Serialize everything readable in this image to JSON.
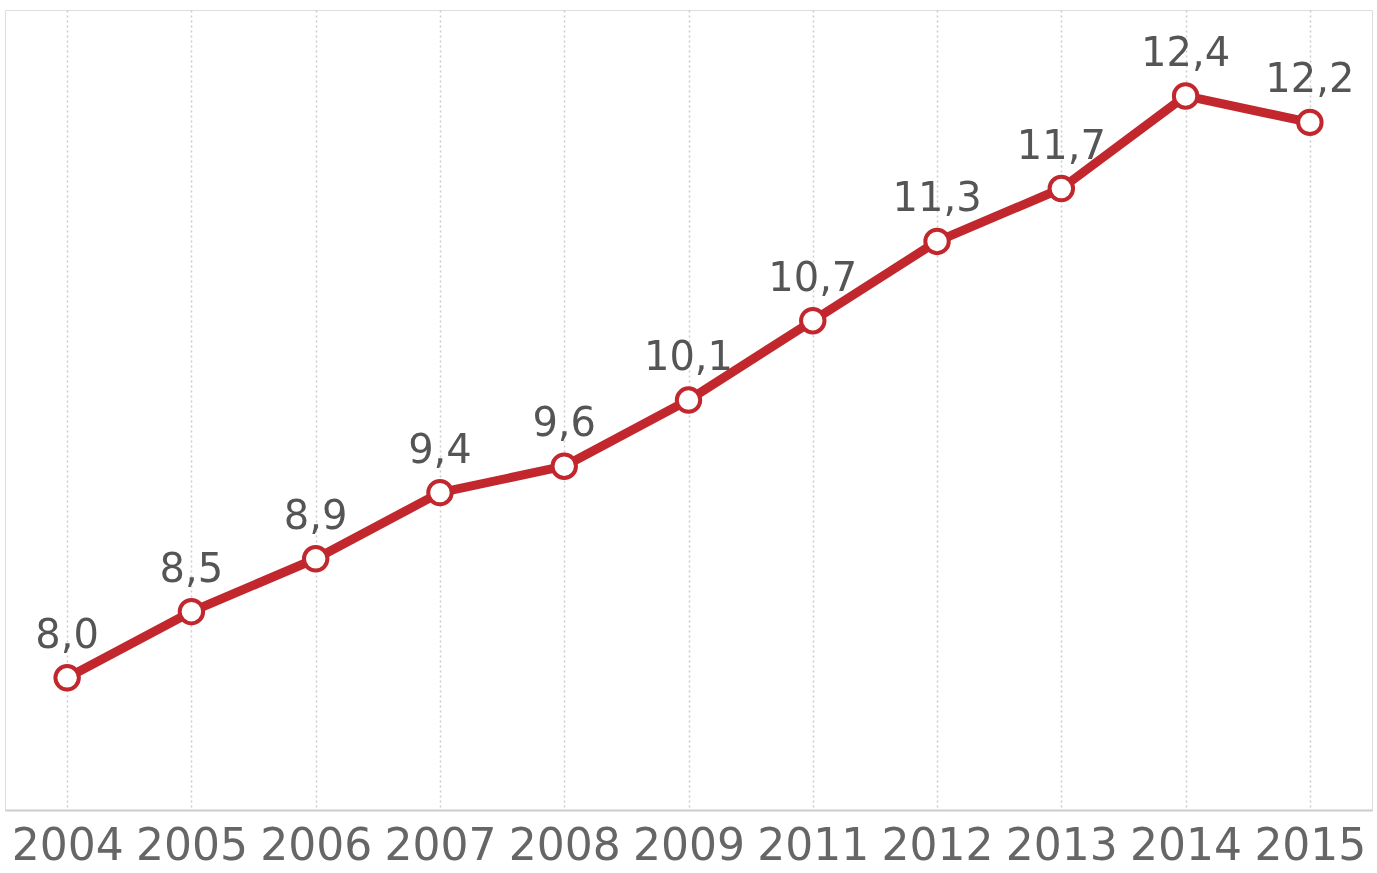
{
  "chart_data": {
    "type": "line",
    "categories": [
      "2004",
      "2005",
      "2006",
      "2007",
      "2008",
      "2009",
      "2011",
      "2012",
      "2013",
      "2014",
      "2015"
    ],
    "series": [
      {
        "color": "#c1272d",
        "values": [
          8.0,
          8.5,
          8.9,
          9.4,
          9.6,
          10.1,
          10.7,
          11.3,
          11.7,
          12.4,
          12.2
        ],
        "value_labels": [
          "8,0",
          "8,5",
          "8,9",
          "9,4",
          "9,6",
          "10,1",
          "10,7",
          "11,3",
          "11,7",
          "12,4",
          "12,2"
        ]
      }
    ],
    "ylim": [
      7.0,
      13.05
    ],
    "tick_labels": "x",
    "grid": "x",
    "marker": "circle",
    "line_style": "solid"
  }
}
